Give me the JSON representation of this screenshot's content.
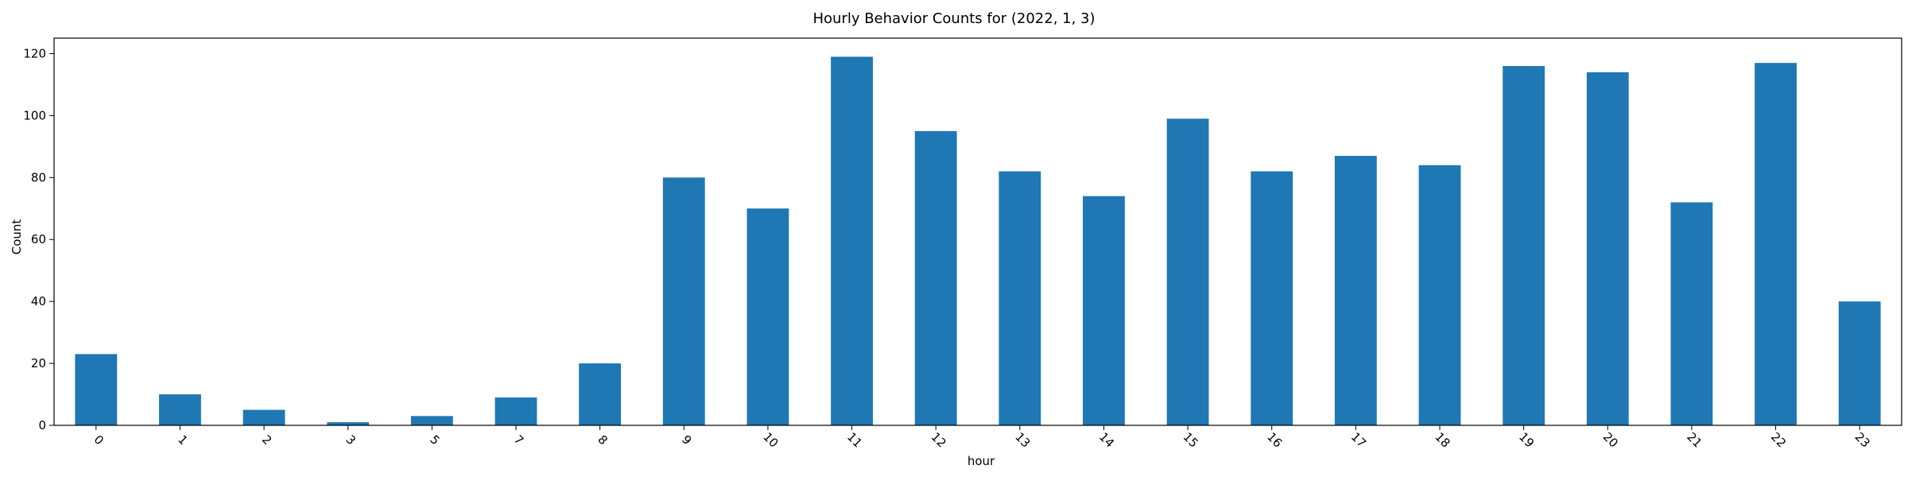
{
  "chart_data": {
    "type": "bar",
    "title": "Hourly Behavior Counts for (2022, 1, 3)",
    "xlabel": "hour",
    "ylabel": "Count",
    "categories": [
      "0",
      "1",
      "2",
      "3",
      "5",
      "7",
      "8",
      "9",
      "10",
      "11",
      "12",
      "13",
      "14",
      "15",
      "16",
      "17",
      "18",
      "19",
      "20",
      "21",
      "22",
      "23"
    ],
    "values": [
      23,
      10,
      5,
      1,
      3,
      9,
      20,
      80,
      70,
      119,
      95,
      82,
      74,
      99,
      82,
      87,
      84,
      116,
      114,
      72,
      117,
      40
    ],
    "ylim": [
      0,
      125
    ],
    "yticks": [
      0,
      20,
      40,
      60,
      80,
      100,
      120
    ],
    "grid": false,
    "legend": "none",
    "bar_color": "#1f77b4"
  }
}
